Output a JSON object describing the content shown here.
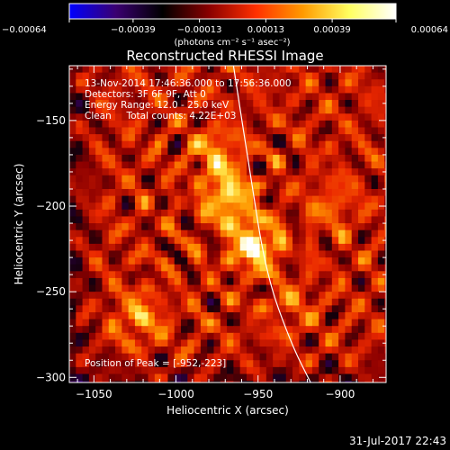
{
  "chart_data": {
    "type": "heatmap",
    "title": "Reconstructed RHESSI Image",
    "xlabel": "Heliocentric X (arcsec)",
    "ylabel": "Heliocentric Y (arcsec)",
    "xlim": [
      -1065,
      -872
    ],
    "ylim": [
      -303,
      -118
    ],
    "x_ticks": [
      -1050,
      -1000,
      -950,
      -900
    ],
    "x_tick_labels": [
      "−1050",
      "−1000",
      "−950",
      "−900"
    ],
    "y_ticks": [
      -150,
      -200,
      -250,
      -300
    ],
    "y_tick_labels": [
      "−150",
      "−200",
      "−250",
      "−300"
    ],
    "colorbar": {
      "min": -0.00064,
      "max": 0.00064,
      "ticks": [
        -0.00064,
        -0.00039,
        -0.00013,
        0.00013,
        0.00039,
        0.00064
      ],
      "tick_labels": [
        "−0.00064",
        "−0.00039",
        "−0.00013",
        "0.00013",
        "0.00039",
        "0.00064"
      ],
      "units_label": "(photons cm⁻² s⁻¹ asec⁻²)",
      "colors": [
        "#0000ff",
        "#3a0070",
        "#000000",
        "#8a0000",
        "#ff3000",
        "#ff9a00",
        "#ffff60",
        "#ffffff"
      ]
    },
    "info_lines": [
      "13-Nov-2014 17:46:36.000 to 17:56:36.000",
      "Detectors: 3F 6F 9F, Att 0",
      "Energy Range: 12.0 - 25.0 keV",
      "Clean     Total counts: 4.22E+03"
    ],
    "peak_label": "Position of Peak = [-952,-223]",
    "peak": [
      -952,
      -223
    ],
    "sources": [
      {
        "x": -952,
        "y": -223,
        "intensity": 1.0
      },
      {
        "x": -968,
        "y": -196,
        "intensity": 0.85
      },
      {
        "x": -975,
        "y": -170,
        "intensity": 0.6
      },
      {
        "x": -1022,
        "y": -265,
        "intensity": 0.55
      },
      {
        "x": -905,
        "y": -200,
        "intensity": 0.35
      },
      {
        "x": -930,
        "y": -258,
        "intensity": 0.3
      }
    ],
    "limb_curve": [
      [
        -965,
        -118
      ],
      [
        -955,
        -180
      ],
      [
        -945,
        -240
      ],
      [
        -930,
        -280
      ],
      [
        -918,
        -303
      ]
    ],
    "timestamp": "31-Jul-2017 22:43",
    "grid": false
  }
}
